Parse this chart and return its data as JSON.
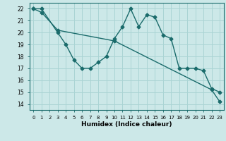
{
  "title": "",
  "xlabel": "Humidex (Indice chaleur)",
  "background_color": "#cce8e8",
  "grid_color": "#aad4d4",
  "line_color": "#1a6b6b",
  "x_ticks": [
    0,
    1,
    2,
    3,
    4,
    5,
    6,
    7,
    8,
    9,
    10,
    11,
    12,
    13,
    14,
    15,
    16,
    17,
    18,
    19,
    20,
    21,
    22,
    23
  ],
  "y_ticks": [
    14,
    15,
    16,
    17,
    18,
    19,
    20,
    21,
    22
  ],
  "xlim": [
    -0.5,
    23.5
  ],
  "ylim": [
    13.5,
    22.5
  ],
  "series1_x": [
    0,
    1,
    3,
    4,
    5,
    6,
    7,
    8,
    9,
    10,
    11,
    12,
    13,
    14,
    15,
    16,
    17,
    18,
    19,
    20,
    21,
    22,
    23
  ],
  "series1_y": [
    22,
    22,
    20,
    19,
    17.7,
    17.0,
    17.0,
    17.5,
    18.0,
    19.5,
    20.5,
    22.0,
    20.5,
    21.5,
    21.3,
    19.8,
    19.5,
    17.0,
    17.0,
    17.0,
    16.8,
    15.3,
    15.0
  ],
  "series2_x": [
    0,
    1,
    3,
    10,
    22,
    23
  ],
  "series2_y": [
    22,
    21.7,
    20.2,
    19.3,
    15.2,
    14.2
  ],
  "marker": "D",
  "marker_size": 2.5,
  "linewidth": 1.0
}
